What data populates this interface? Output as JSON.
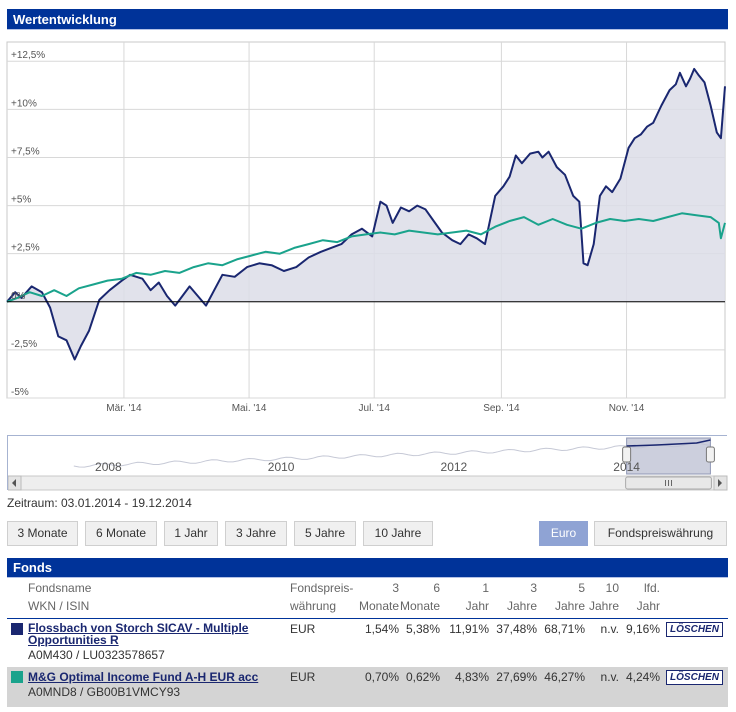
{
  "header": {
    "title": "Wertentwicklung"
  },
  "chart_data": {
    "type": "line",
    "y_unit": "%",
    "ylim": [
      -5,
      13.5
    ],
    "y_ticks": [
      "+12,5%",
      "+10%",
      "+7,5%",
      "+5%",
      "+2,5%",
      "0%",
      "-2,5%",
      "-5%"
    ],
    "y_tick_values": [
      12.5,
      10,
      7.5,
      5,
      2.5,
      0,
      -2.5,
      -5
    ],
    "x_ticks": [
      "Mär. '14",
      "Mai. '14",
      "Jul. '14",
      "Sep. '14",
      "Nov. '14"
    ],
    "x_tick_dates": [
      "2014-03-01",
      "2014-05-01",
      "2014-07-01",
      "2014-09-01",
      "2014-11-01"
    ],
    "x_range": [
      "2014-01-03",
      "2014-12-19"
    ],
    "grid": true,
    "series": [
      {
        "name": "Flossbach von Storch SICAV - Multiple Opportunities R",
        "color": "#1a2770",
        "area": true,
        "points": [
          [
            "2014-01-03",
            0
          ],
          [
            "2014-01-07",
            0.5
          ],
          [
            "2014-01-10",
            0.2
          ],
          [
            "2014-01-15",
            0.8
          ],
          [
            "2014-01-20",
            0.5
          ],
          [
            "2014-01-24",
            -0.3
          ],
          [
            "2014-01-28",
            -1.8
          ],
          [
            "2014-02-01",
            -2.0
          ],
          [
            "2014-02-05",
            -3.0
          ],
          [
            "2014-02-08",
            -2.3
          ],
          [
            "2014-02-12",
            -1.5
          ],
          [
            "2014-02-17",
            0.1
          ],
          [
            "2014-02-22",
            0.6
          ],
          [
            "2014-02-28",
            1.1
          ],
          [
            "2014-03-04",
            1.4
          ],
          [
            "2014-03-10",
            1.2
          ],
          [
            "2014-03-14",
            0.6
          ],
          [
            "2014-03-18",
            1.0
          ],
          [
            "2014-03-22",
            0.3
          ],
          [
            "2014-03-26",
            -0.2
          ],
          [
            "2014-04-02",
            0.8
          ],
          [
            "2014-04-06",
            0.3
          ],
          [
            "2014-04-10",
            -0.2
          ],
          [
            "2014-04-14",
            0.6
          ],
          [
            "2014-04-18",
            1.4
          ],
          [
            "2014-04-24",
            1.3
          ],
          [
            "2014-04-30",
            1.8
          ],
          [
            "2014-05-06",
            2.0
          ],
          [
            "2014-05-12",
            1.9
          ],
          [
            "2014-05-18",
            1.6
          ],
          [
            "2014-05-24",
            1.8
          ],
          [
            "2014-05-30",
            2.3
          ],
          [
            "2014-06-05",
            2.6
          ],
          [
            "2014-06-10",
            2.8
          ],
          [
            "2014-06-15",
            3.0
          ],
          [
            "2014-06-20",
            3.5
          ],
          [
            "2014-06-25",
            3.8
          ],
          [
            "2014-06-30",
            3.4
          ],
          [
            "2014-07-04",
            5.2
          ],
          [
            "2014-07-07",
            5.0
          ],
          [
            "2014-07-10",
            4.1
          ],
          [
            "2014-07-14",
            4.9
          ],
          [
            "2014-07-18",
            4.7
          ],
          [
            "2014-07-22",
            5.0
          ],
          [
            "2014-07-26",
            4.8
          ],
          [
            "2014-07-30",
            4.2
          ],
          [
            "2014-08-03",
            3.6
          ],
          [
            "2014-08-08",
            3.2
          ],
          [
            "2014-08-12",
            3.0
          ],
          [
            "2014-08-16",
            3.5
          ],
          [
            "2014-08-20",
            3.3
          ],
          [
            "2014-08-24",
            3.0
          ],
          [
            "2014-08-27",
            4.5
          ],
          [
            "2014-08-29",
            5.5
          ],
          [
            "2014-09-02",
            6.0
          ],
          [
            "2014-09-05",
            6.5
          ],
          [
            "2014-09-08",
            7.6
          ],
          [
            "2014-09-11",
            7.2
          ],
          [
            "2014-09-15",
            7.7
          ],
          [
            "2014-09-19",
            7.8
          ],
          [
            "2014-09-21",
            7.5
          ],
          [
            "2014-09-24",
            7.8
          ],
          [
            "2014-09-28",
            7.0
          ],
          [
            "2014-10-02",
            6.6
          ],
          [
            "2014-10-06",
            5.5
          ],
          [
            "2014-10-09",
            5.2
          ],
          [
            "2014-10-11",
            2.0
          ],
          [
            "2014-10-13",
            1.9
          ],
          [
            "2014-10-16",
            3.0
          ],
          [
            "2014-10-19",
            5.5
          ],
          [
            "2014-10-22",
            6.0
          ],
          [
            "2014-10-25",
            5.7
          ],
          [
            "2014-10-29",
            6.4
          ],
          [
            "2014-11-02",
            8.0
          ],
          [
            "2014-11-05",
            8.5
          ],
          [
            "2014-11-08",
            8.7
          ],
          [
            "2014-11-11",
            9.1
          ],
          [
            "2014-11-14",
            9.3
          ],
          [
            "2014-11-18",
            10.2
          ],
          [
            "2014-11-22",
            11.0
          ],
          [
            "2014-11-25",
            11.3
          ],
          [
            "2014-11-27",
            11.9
          ],
          [
            "2014-11-30",
            11.2
          ],
          [
            "2014-12-02",
            11.6
          ],
          [
            "2014-12-04",
            12.1
          ],
          [
            "2014-12-06",
            11.8
          ],
          [
            "2014-12-09",
            11.4
          ],
          [
            "2014-12-12",
            10.2
          ],
          [
            "2014-12-15",
            8.8
          ],
          [
            "2014-12-17",
            8.5
          ],
          [
            "2014-12-19",
            11.2
          ]
        ]
      },
      {
        "name": "M&G Optimal Income Fund A-H EUR acc",
        "color": "#1aa38c",
        "area": false,
        "points": [
          [
            "2014-01-03",
            0
          ],
          [
            "2014-01-08",
            0.2
          ],
          [
            "2014-01-14",
            0.5
          ],
          [
            "2014-01-20",
            0.3
          ],
          [
            "2014-01-26",
            0.6
          ],
          [
            "2014-02-01",
            0.3
          ],
          [
            "2014-02-07",
            0.7
          ],
          [
            "2014-02-14",
            0.9
          ],
          [
            "2014-02-21",
            1.1
          ],
          [
            "2014-02-28",
            1.2
          ],
          [
            "2014-03-07",
            1.5
          ],
          [
            "2014-03-14",
            1.4
          ],
          [
            "2014-03-21",
            1.6
          ],
          [
            "2014-03-28",
            1.5
          ],
          [
            "2014-04-04",
            1.8
          ],
          [
            "2014-04-11",
            2.0
          ],
          [
            "2014-04-18",
            1.9
          ],
          [
            "2014-04-25",
            2.2
          ],
          [
            "2014-05-02",
            2.4
          ],
          [
            "2014-05-09",
            2.6
          ],
          [
            "2014-05-16",
            2.5
          ],
          [
            "2014-05-23",
            2.8
          ],
          [
            "2014-05-30",
            3.0
          ],
          [
            "2014-06-06",
            3.2
          ],
          [
            "2014-06-13",
            3.1
          ],
          [
            "2014-06-20",
            3.4
          ],
          [
            "2014-06-27",
            3.5
          ],
          [
            "2014-07-04",
            3.6
          ],
          [
            "2014-07-11",
            3.5
          ],
          [
            "2014-07-18",
            3.7
          ],
          [
            "2014-07-25",
            3.6
          ],
          [
            "2014-08-01",
            3.5
          ],
          [
            "2014-08-08",
            3.6
          ],
          [
            "2014-08-15",
            3.7
          ],
          [
            "2014-08-22",
            3.5
          ],
          [
            "2014-08-29",
            3.9
          ],
          [
            "2014-09-05",
            4.2
          ],
          [
            "2014-09-12",
            4.4
          ],
          [
            "2014-09-19",
            4.0
          ],
          [
            "2014-09-26",
            4.3
          ],
          [
            "2014-10-03",
            4.0
          ],
          [
            "2014-10-10",
            3.8
          ],
          [
            "2014-10-17",
            4.1
          ],
          [
            "2014-10-24",
            4.3
          ],
          [
            "2014-10-31",
            4.2
          ],
          [
            "2014-11-07",
            4.3
          ],
          [
            "2014-11-14",
            4.2
          ],
          [
            "2014-11-21",
            4.4
          ],
          [
            "2014-11-28",
            4.6
          ],
          [
            "2014-12-05",
            4.5
          ],
          [
            "2014-12-12",
            4.4
          ],
          [
            "2014-12-16",
            4.1
          ],
          [
            "2014-12-17",
            3.3
          ],
          [
            "2014-12-19",
            4.1
          ]
        ]
      }
    ]
  },
  "navigator": {
    "year_labels": [
      "2008",
      "2010",
      "2012",
      "2014"
    ],
    "year_values": [
      2008,
      2010,
      2012,
      2014
    ],
    "year_range": [
      2007,
      2015
    ],
    "selection_range": [
      2014.0,
      2014.97
    ],
    "scroll_icon": "grip-icon"
  },
  "period": {
    "text": "Zeitraum: 03.01.2014 - 19.12.2014"
  },
  "range_buttons": [
    "3 Monate",
    "6 Monate",
    "1 Jahr",
    "3 Jahre",
    "5 Jahre",
    "10 Jahre"
  ],
  "currency_buttons": {
    "euro": "Euro",
    "fund_currency": "Fondspreiswährung",
    "active": "euro"
  },
  "funds": {
    "title": "Fonds",
    "headers": {
      "name_1": "Fondsname",
      "name_2": "WKN / ISIN",
      "curr_1": "Fondspreis-",
      "curr_2": "währung",
      "m3_1": "3",
      "m3_2": "Monate",
      "m6_1": "6",
      "m6_2": "Monate",
      "y1_1": "1",
      "y1_2": "Jahr",
      "y3_1": "3",
      "y3_2": "Jahre",
      "y5_1": "5",
      "y5_2": "Jahre",
      "y10_1": "10",
      "y10_2": "Jahre",
      "ytd_1": "lfd.",
      "ytd_2": "Jahr"
    },
    "rows": [
      {
        "name_line1": "Flossbach von Storch SICAV - Multiple",
        "name_line2": "Opportunities R",
        "wkn": "A0M430 / LU0323578657",
        "color": "#1a2770",
        "currency": "EUR",
        "m3": "1,54%",
        "m6": "5,38%",
        "y1": "11,91%",
        "y3": "37,48%",
        "y5": "68,71%",
        "y10": "n.v.",
        "ytd": "9,16%",
        "delete": "LÖSCHEN"
      },
      {
        "name_line1": "M&G Optimal Income Fund A-H EUR acc",
        "wkn": "A0MND8 / GB00B1VMCY93",
        "color": "#1aa38c",
        "currency": "EUR",
        "m3": "0,70%",
        "m6": "0,62%",
        "y1": "4,83%",
        "y3": "27,69%",
        "y5": "46,27%",
        "y10": "n.v.",
        "ytd": "4,24%",
        "delete": "LÖSCHEN"
      }
    ]
  }
}
